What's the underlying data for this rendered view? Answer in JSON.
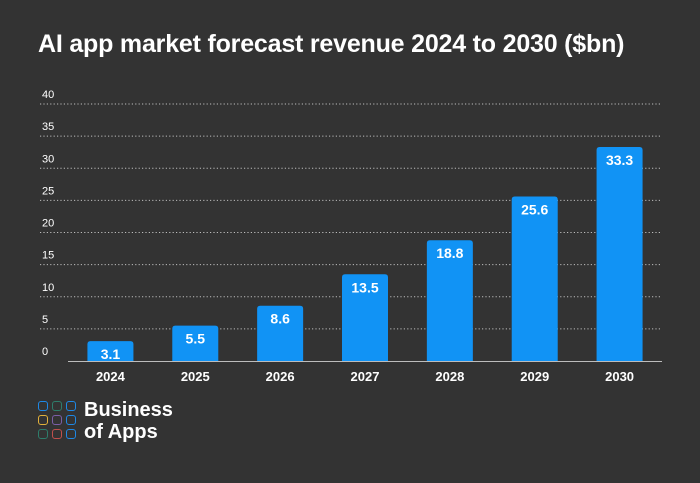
{
  "title": "AI app market forecast revenue 2024 to 2030 ($bn)",
  "brand": {
    "line1": "Business",
    "line2": "of Apps",
    "tile_colors": [
      "#1E88E5",
      "#2E7D6B",
      "#1E88E5",
      "#E2B13C",
      "#7B5EA7",
      "#1E88E5",
      "#2E7D6B",
      "#C0504D",
      "#1E88E5"
    ]
  },
  "colors": {
    "background": "#333333",
    "bar": "#1193F5",
    "text": "#FFFFFF",
    "grid": "#BDBDBD"
  },
  "chart_data": {
    "type": "bar",
    "title": "AI app market forecast revenue 2024 to 2030 ($bn)",
    "xlabel": "",
    "ylabel": "",
    "categories": [
      "2024",
      "2025",
      "2026",
      "2027",
      "2028",
      "2029",
      "2030"
    ],
    "values": [
      3.1,
      5.5,
      8.6,
      13.5,
      18.8,
      25.6,
      33.3
    ],
    "data_labels": [
      "3.1",
      "5.5",
      "8.6",
      "13.5",
      "18.8",
      "25.6",
      "33.3"
    ],
    "ylim": [
      0,
      40
    ],
    "yticks": [
      0,
      5,
      10,
      15,
      20,
      25,
      30,
      35,
      40
    ],
    "grid": true,
    "grid_style": "dotted",
    "legend": "none"
  }
}
